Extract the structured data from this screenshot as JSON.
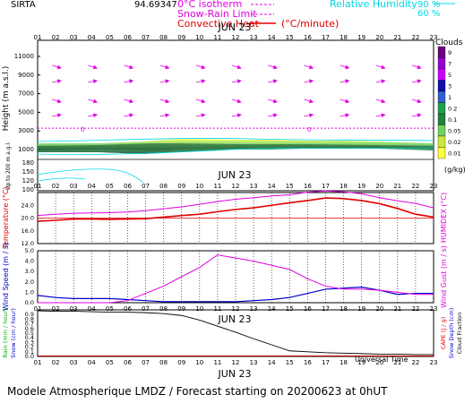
{
  "header": {
    "station": "SIRTA",
    "coords": "94.69347",
    "legend_isotherm": "0°C isotherm",
    "legend_snowrain": "Snow-Rain Limit",
    "legend_convective": "Convective Heat",
    "legend_convective_unit": "(°C/minute)",
    "legend_rh": "Relative Humidity",
    "legend_rh_90": "90 %",
    "legend_rh_60": "60 %"
  },
  "footer": {
    "text": "Modele Atmospherique LMDZ / Forecast starting on 20200623 at 0hUT",
    "time_label": "Universal Time"
  },
  "colors": {
    "magenta": "#e000e0",
    "cyan": "#00d8e8",
    "red": "#e00000",
    "blue": "#0000cc",
    "green": "#00aa00",
    "black": "#000000"
  },
  "hours": [
    "01",
    "02",
    "03",
    "04",
    "05",
    "06",
    "07",
    "08",
    "09",
    "10",
    "11",
    "12",
    "13",
    "14",
    "15",
    "16",
    "17",
    "18",
    "19",
    "20",
    "21",
    "22",
    "23"
  ],
  "date_label": "JUN 23",
  "chart_data": [
    {
      "panel": "height",
      "type": "heatmap",
      "ylabel": "Height (m a.s.l.)",
      "ylabel_low": "Up to 200 m a.g.l.",
      "yticks_upper": [
        "11000",
        "9000",
        "7000",
        "5000",
        "3000",
        "1000"
      ],
      "yticks_lower": [
        "180",
        "150",
        "120",
        "100"
      ],
      "isotherm_label": "0",
      "isotherm_height": 3300,
      "colorbar_title": "Clouds",
      "colorbar_unit": "(g/kg)",
      "colorbar_ticks": [
        "9",
        "7",
        "5",
        "3",
        "1",
        "0.2",
        "0.1",
        "0.05",
        "0.02",
        "0.01"
      ],
      "colorbar_colors": [
        "#6a0080",
        "#9900cc",
        "#cc00ff",
        "#1010aa",
        "#3060cc",
        "#20a050",
        "#208040",
        "#70d060",
        "#c8e840",
        "#ffff40"
      ]
    },
    {
      "panel": "temperature",
      "type": "line",
      "ylabel": "Temperature (°C)",
      "ylabel_right": "HUMIDEX (°C)",
      "yticks": [
        "24.0",
        "20.0",
        "16.0",
        "12.0"
      ],
      "ylim": [
        12,
        28
      ],
      "hline": 20.0,
      "series": [
        {
          "values": [
            19.0,
            19.3,
            19.7,
            19.7,
            19.6,
            19.7,
            19.8,
            20.3,
            20.8,
            21.2,
            22.0,
            22.7,
            23.2,
            24.0,
            24.8,
            25.5,
            26.3,
            26.1,
            25.5,
            24.5,
            23.0,
            21.2,
            20.3
          ]
        },
        {
          "values": [
            20.8,
            21.2,
            21.5,
            21.6,
            21.7,
            21.9,
            22.3,
            22.9,
            23.5,
            24.3,
            25.2,
            25.9,
            26.4,
            26.9,
            27.3,
            28.1,
            28.5,
            28.2,
            27.6,
            26.4,
            25.4,
            24.6,
            23.2
          ]
        }
      ]
    },
    {
      "panel": "wind",
      "type": "line",
      "ylabel": "Wind Speed (m / s)",
      "ylabel_right": "Wind Gust (m / s)",
      "yticks": [
        "5.0",
        "4.0",
        "3.0",
        "2.0",
        "1.0",
        "0.0"
      ],
      "ylim": [
        0,
        5
      ],
      "series": [
        {
          "values": [
            0.7,
            0.5,
            0.4,
            0.4,
            0.4,
            0.3,
            0.2,
            0.1,
            0.1,
            0.1,
            0.1,
            0.1,
            0.2,
            0.3,
            0.5,
            0.9,
            1.3,
            1.4,
            1.5,
            1.2,
            0.8,
            0.9,
            0.9
          ]
        },
        {
          "values": [
            0.0,
            0.0,
            0.0,
            0.0,
            0.0,
            0.2,
            0.9,
            1.6,
            2.5,
            3.4,
            4.6,
            4.3,
            4.0,
            3.6,
            3.2,
            2.3,
            1.6,
            1.3,
            1.3,
            1.2,
            1.0,
            0.8,
            0.8
          ]
        }
      ]
    },
    {
      "panel": "precip",
      "type": "line",
      "ylabel_rain": "Rain (mm / hour)",
      "ylabel_snow": "Snow (cm / hour)",
      "ylabel_cape": "CAPE (J / g)",
      "ylabel_snowdepth": "Snow Depth (cm)",
      "ylabel_cloudfrac": "Cloud Fraction",
      "yticks": [
        "0.9",
        "0.8",
        "0.7",
        "0.6",
        "0.5",
        "0.4",
        "0.3",
        "0.2",
        "0.1",
        "0.0"
      ],
      "ylim": [
        0,
        1
      ],
      "series": [
        {
          "values": [
            0.98,
            0.97,
            0.97,
            0.96,
            0.95,
            0.95,
            0.94,
            0.92,
            0.88,
            0.78,
            0.65,
            0.52,
            0.38,
            0.25,
            0.12,
            0.1,
            0.08,
            0.07,
            0.06,
            0.05,
            0.05,
            0.04,
            0.04
          ]
        },
        {
          "values": [
            0.01,
            0.01,
            0.01,
            0.01,
            0.01,
            0.01,
            0.01,
            0.01,
            0.01,
            0.01,
            0.01,
            0.01,
            0.01,
            0.01,
            0.01,
            0.01,
            0.01,
            0.01,
            0.01,
            0.01,
            0.01,
            0.01,
            0.01
          ]
        }
      ]
    }
  ]
}
